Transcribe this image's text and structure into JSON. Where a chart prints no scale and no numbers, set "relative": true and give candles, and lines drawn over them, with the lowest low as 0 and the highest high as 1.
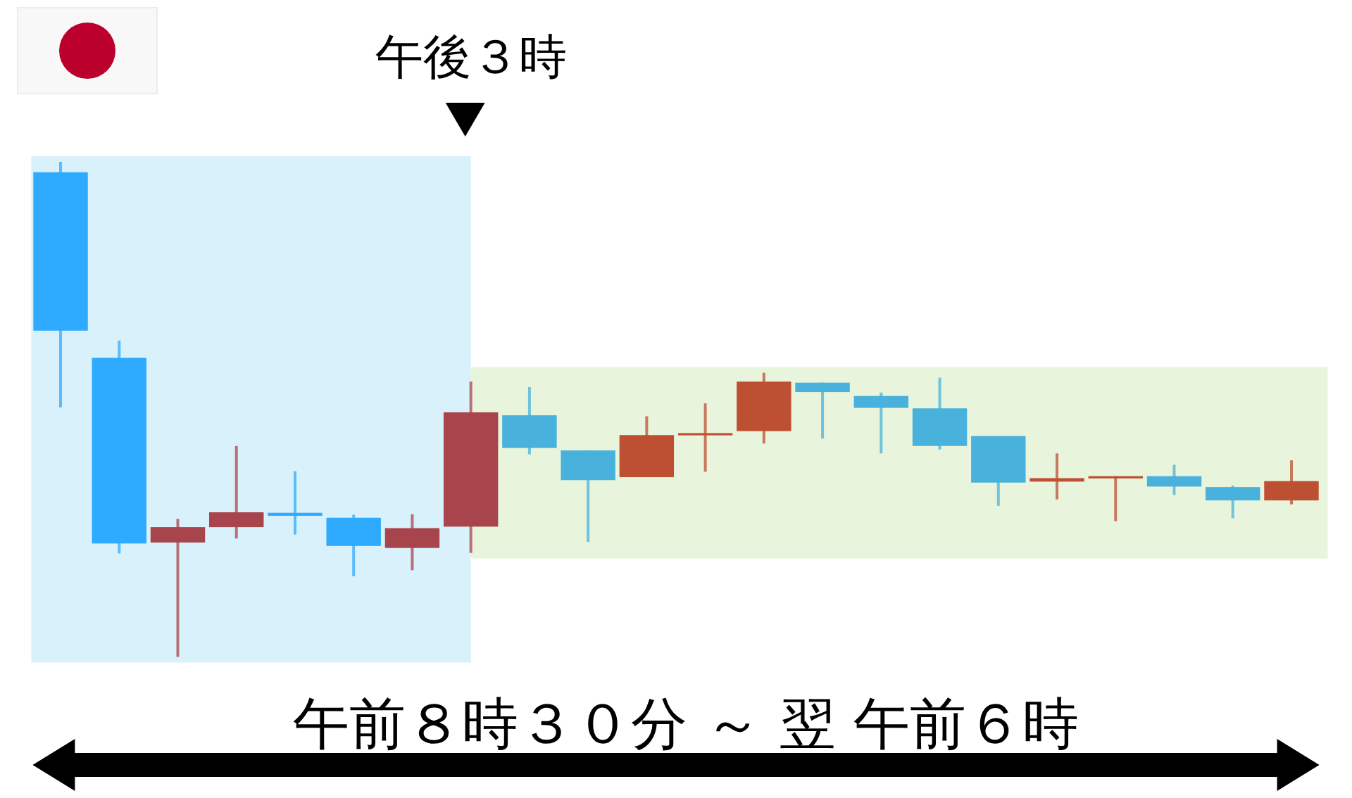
{
  "chart_data": {
    "type": "candlestick",
    "relative": true,
    "categories": [
      null,
      null,
      null,
      null,
      null,
      null,
      null,
      null,
      null,
      null,
      null,
      null,
      null,
      null,
      null,
      null,
      null,
      null,
      null,
      null,
      null,
      null
    ],
    "ohlc": [
      [
        0.979,
        1,
        0.504,
        0.659
      ],
      [
        0.604,
        0.639,
        0.209,
        0.229
      ],
      [
        0.231,
        0.279,
        0,
        0.262
      ],
      [
        0.262,
        0.426,
        0.239,
        0.292
      ],
      [
        0.291,
        0.375,
        0.247,
        0.285
      ],
      [
        0.281,
        0.287,
        0.163,
        0.224
      ],
      [
        0.22,
        0.288,
        0.175,
        0.26
      ],
      [
        0.263,
        0.556,
        0.21,
        0.494
      ],
      [
        0.488,
        0.545,
        0.409,
        0.422
      ],
      [
        0.417,
        0.417,
        0.232,
        0.357
      ],
      [
        0.363,
        0.486,
        0.363,
        0.448
      ],
      [
        0.449,
        0.512,
        0.374,
        0.452
      ],
      [
        0.456,
        0.574,
        0.431,
        0.556
      ],
      [
        0.554,
        0.554,
        0.441,
        0.535
      ],
      [
        0.527,
        0.534,
        0.411,
        0.503
      ],
      [
        0.502,
        0.564,
        0.419,
        0.426
      ],
      [
        0.446,
        0.446,
        0.305,
        0.352
      ],
      [
        0.354,
        0.411,
        0.318,
        0.361
      ],
      [
        0.362,
        0.365,
        0.274,
        0.365
      ],
      [
        0.365,
        0.388,
        0.327,
        0.344
      ],
      [
        0.343,
        0.346,
        0.28,
        0.316
      ],
      [
        0.316,
        0.397,
        0.308,
        0.355
      ]
    ],
    "colors": [
      "#2eaaff",
      "#2eaaff",
      "#a8444c",
      "#a8444c",
      "#2eaaff",
      "#2eaaff",
      "#a8444c",
      "#a8444c",
      "#48b1dc",
      "#48b1dc",
      "#bd4f33",
      "#bd4f33",
      "#bd4f33",
      "#48b1dc",
      "#48b1dc",
      "#48b1dc",
      "#48b1dc",
      "#bd4f33",
      "#bd4f33",
      "#48b1dc",
      "#48b1dc",
      "#bd4f33"
    ],
    "xlabel": "午前８時３０分 ～ 翌 午前６時",
    "annotations": [
      "午後３時"
    ]
  }
}
